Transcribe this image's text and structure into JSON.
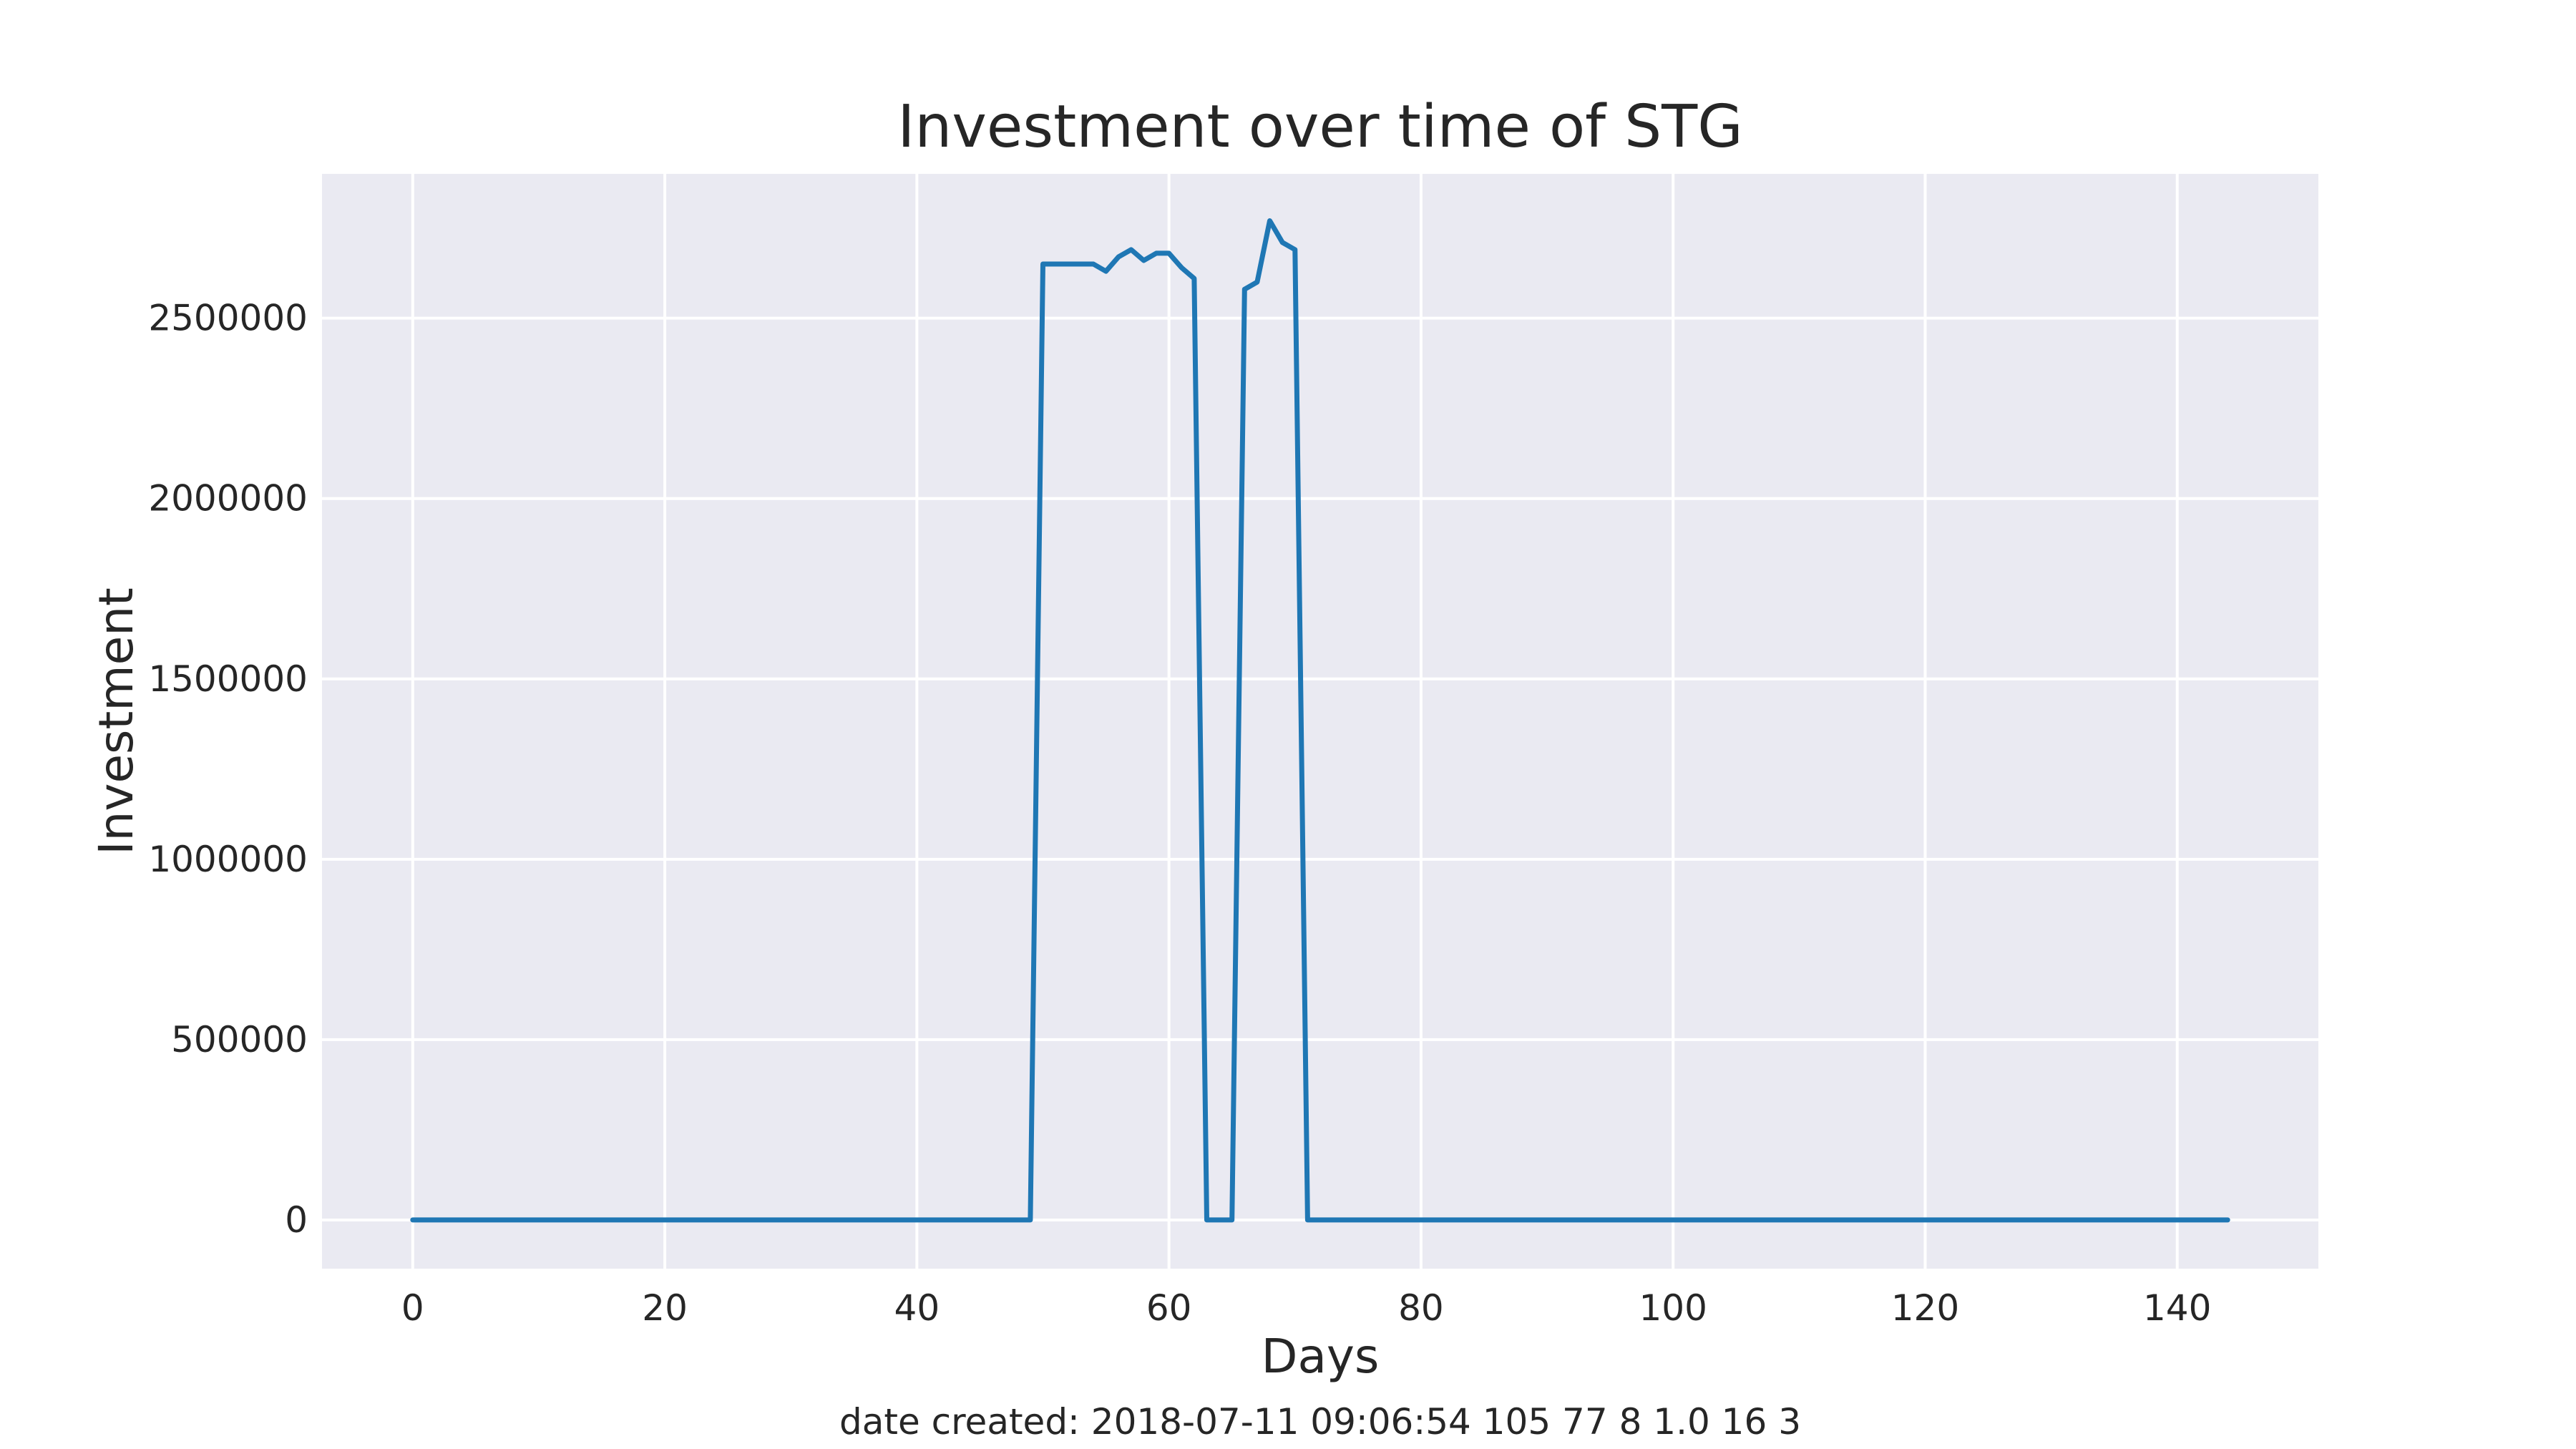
{
  "chart_data": {
    "type": "line",
    "title": "Investment over time of STG",
    "xlabel": "Days",
    "ylabel": "Investment",
    "xlim": [
      -7.2,
      151.2
    ],
    "ylim": [
      -135000,
      2900000
    ],
    "xticks": [
      0,
      20,
      40,
      60,
      80,
      100,
      120,
      140
    ],
    "yticks": [
      0,
      500000,
      1000000,
      1500000,
      2000000,
      2500000
    ],
    "grid": true,
    "colors": {
      "background": "#eaeaf2",
      "grid": "#ffffff",
      "line": "#1f77b4"
    },
    "series": [
      {
        "x": [
          0,
          49,
          50,
          54,
          55,
          56,
          57,
          58,
          59,
          60,
          61,
          62,
          63,
          64,
          65,
          66,
          67,
          68,
          69,
          70,
          71,
          144
        ],
        "values": [
          0,
          0,
          2650000,
          2650000,
          2630000,
          2670000,
          2690000,
          2660000,
          2680000,
          2680000,
          2640000,
          2610000,
          0,
          0,
          0,
          2580000,
          2600000,
          2770000,
          2710000,
          2690000,
          0,
          0
        ]
      }
    ]
  },
  "footnote": "date created: 2018-07-11 09:06:54 105 77 8 1.0 16 3"
}
